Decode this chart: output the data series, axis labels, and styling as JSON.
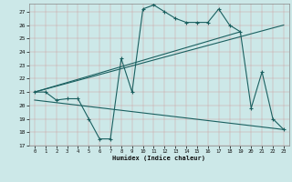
{
  "xlabel": "Humidex (Indice chaleur)",
  "background_color": "#cce8e8",
  "line_color": "#1a6060",
  "xlim": [
    -0.5,
    23.5
  ],
  "ylim": [
    17,
    27.6
  ],
  "yticks": [
    17,
    18,
    19,
    20,
    21,
    22,
    23,
    24,
    25,
    26,
    27
  ],
  "xticks": [
    0,
    1,
    2,
    3,
    4,
    5,
    6,
    7,
    8,
    9,
    10,
    11,
    12,
    13,
    14,
    15,
    16,
    17,
    18,
    19,
    20,
    21,
    22,
    23
  ],
  "line1_x": [
    0,
    1,
    2,
    3,
    4,
    5,
    6,
    7,
    8,
    9,
    10,
    11,
    12,
    13,
    14,
    15,
    16,
    17,
    18,
    19,
    20,
    21,
    22,
    23
  ],
  "line1_y": [
    21.0,
    21.0,
    20.4,
    20.5,
    20.5,
    19.0,
    17.5,
    17.5,
    23.5,
    21.0,
    27.2,
    27.5,
    27.0,
    26.5,
    26.2,
    26.2,
    26.2,
    27.2,
    26.0,
    25.5,
    19.8,
    22.5,
    19.0,
    18.2
  ],
  "line2_x": [
    0,
    23
  ],
  "line2_y": [
    21.0,
    26.0
  ],
  "line3_x": [
    0,
    19
  ],
  "line3_y": [
    21.0,
    25.5
  ],
  "line4_x": [
    0,
    23
  ],
  "line4_y": [
    20.4,
    18.2
  ]
}
